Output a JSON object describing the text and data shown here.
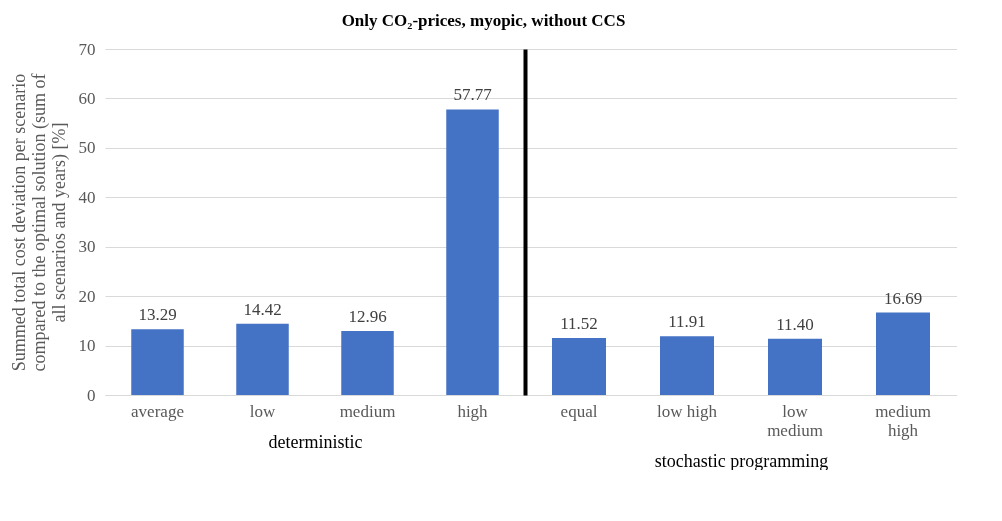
{
  "chart_data": [
    {
      "type": "bar",
      "title": "Only CO₂-prices, myopic, without CCS",
      "xlabel": "deterministic",
      "ylabel": "Summed total cost deviation per scenario compared to the optimal solution (sum of all scenarios and years) [%]",
      "categories": [
        "average",
        "low",
        "medium",
        "high"
      ],
      "values": [
        13.29,
        14.42,
        12.96,
        57.77
      ],
      "value_labels": [
        "13.29",
        "14.42",
        "12.96",
        "57.77"
      ],
      "color": "#4472c4",
      "ylim": [
        0,
        70
      ],
      "yticks": [
        0,
        10,
        20,
        30,
        40,
        50,
        60,
        70
      ],
      "grid": "y"
    },
    {
      "type": "bar",
      "xlabel": "stochastic programming",
      "categories": [
        "equal",
        "low high",
        "low medium",
        "medium high"
      ],
      "values": [
        11.52,
        11.91,
        11.4,
        16.69
      ],
      "value_labels": [
        "11.52",
        "11.91",
        "11.40",
        "16.69"
      ],
      "color": "#4472c4",
      "ylim": [
        0,
        70
      ],
      "yticks": [
        0,
        10,
        20,
        30,
        40,
        50,
        60,
        70
      ],
      "grid": "y",
      "tick_labels": "x"
    }
  ]
}
